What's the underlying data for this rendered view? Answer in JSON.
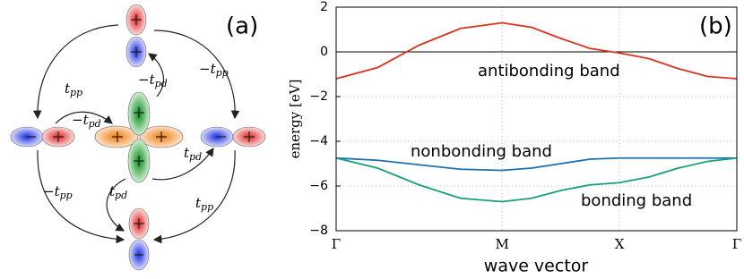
{
  "chart_data": {
    "type": "line",
    "panel_label": "(b)",
    "x_label": "wave vector",
    "y_label": "energy [eV]",
    "x": [
      0,
      0.354,
      0.707,
      1.061,
      1.414,
      1.664,
      1.914,
      2.164,
      2.414,
      2.664,
      2.914,
      3.164,
      3.414
    ],
    "series": [
      {
        "name": "antibonding band",
        "color": "#d8341f",
        "values": [
          -1.2,
          -0.7,
          0.3,
          1.05,
          1.3,
          1.1,
          0.6,
          0.15,
          -0.05,
          -0.3,
          -0.75,
          -1.1,
          -1.2
        ]
      },
      {
        "name": "nonbonding band",
        "color": "#1f6fb0",
        "values": [
          -4.75,
          -4.85,
          -5.05,
          -5.25,
          -5.3,
          -5.2,
          -5.0,
          -4.8,
          -4.75,
          -4.75,
          -4.75,
          -4.75,
          -4.75
        ]
      },
      {
        "name": "bonding band",
        "color": "#17a07a",
        "values": [
          -4.75,
          -5.2,
          -5.95,
          -6.55,
          -6.7,
          -6.55,
          -6.2,
          -5.95,
          -5.85,
          -5.6,
          -5.2,
          -4.9,
          -4.75
        ]
      }
    ],
    "xlim": [
      0,
      3.414
    ],
    "xticks": [
      {
        "value": 0,
        "label": "Γ"
      },
      {
        "value": 1.414,
        "label": "M"
      },
      {
        "value": 2.414,
        "label": "X"
      },
      {
        "value": 3.414,
        "label": "Γ"
      }
    ],
    "ylim": [
      -8,
      2
    ],
    "yticks": [
      {
        "value": -8,
        "label": "−8"
      },
      {
        "value": -6,
        "label": "−6"
      },
      {
        "value": -4,
        "label": "−4"
      },
      {
        "value": -2,
        "label": "−2"
      },
      0,
      2
    ],
    "grid": true
  },
  "diagram": {
    "panel_label": "(a)",
    "hoppings": [
      {
        "text": "t",
        "sub": "pp"
      },
      {
        "text": "−t",
        "sub": "pp"
      },
      {
        "text": "−t",
        "sub": "pd"
      },
      {
        "text": "−t",
        "sub": "pd"
      },
      {
        "text": "t",
        "sub": "pd"
      },
      {
        "text": "t",
        "sub": "pd"
      },
      {
        "text": "−t",
        "sub": "pp"
      },
      {
        "text": "t",
        "sub": "pp"
      }
    ]
  }
}
